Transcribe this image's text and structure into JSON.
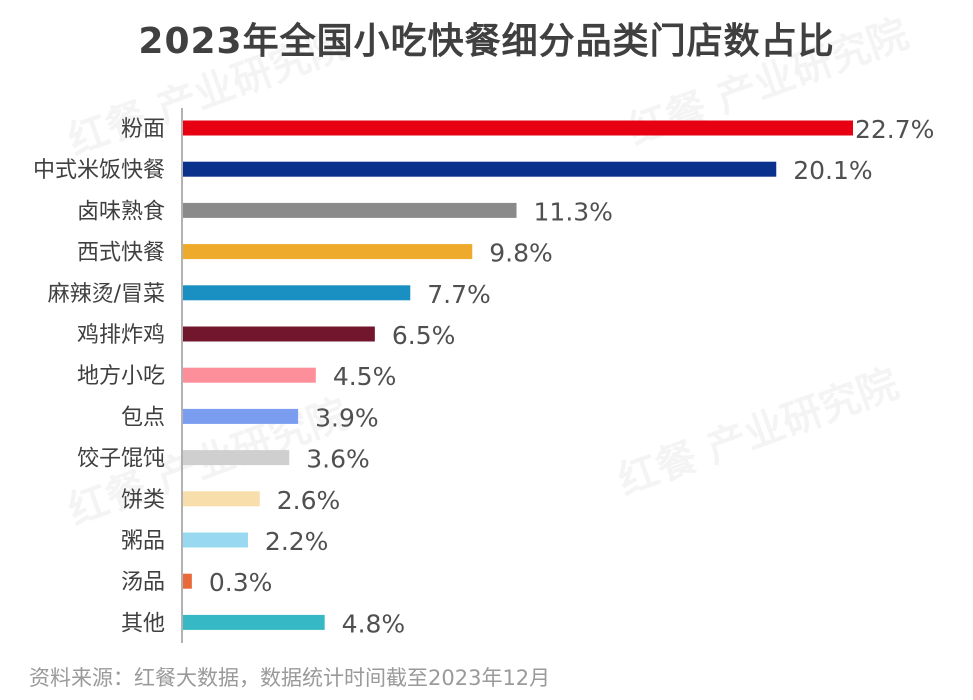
{
  "watermark": "红餐 产业研究院",
  "chart_data": {
    "type": "bar",
    "orientation": "horizontal",
    "title": "2023年全国小吃快餐细分品类门店数占比",
    "categories": [
      "粉面",
      "中式米饭快餐",
      "卤味熟食",
      "西式快餐",
      "麻辣烫/冒菜",
      "鸡排炸鸡",
      "地方小吃",
      "包点",
      "饺子馄饨",
      "饼类",
      "粥品",
      "汤品",
      "其他"
    ],
    "values": [
      22.7,
      20.1,
      11.3,
      9.8,
      7.7,
      6.5,
      4.5,
      3.9,
      3.6,
      2.6,
      2.2,
      0.3,
      4.8
    ],
    "labels": [
      "22.7%",
      "20.1%",
      "11.3%",
      "9.8%",
      "7.7%",
      "6.5%",
      "4.5%",
      "3.9%",
      "3.6%",
      "2.6%",
      "2.2%",
      "0.3%",
      "4.8%"
    ],
    "colors": [
      "#e60012",
      "#0a318c",
      "#8a8a8a",
      "#eeaa2a",
      "#1a8fc2",
      "#72162e",
      "#fc8f9a",
      "#7b9df0",
      "#cfcfcf",
      "#f7deaa",
      "#98d8f0",
      "#e96a38",
      "#36b9c4"
    ],
    "unit": "%",
    "xlim": [
      0,
      22.7
    ],
    "grid": false,
    "legend": "none"
  },
  "source": "资料来源：红餐大数据，数据统计时间截至2023年12月"
}
